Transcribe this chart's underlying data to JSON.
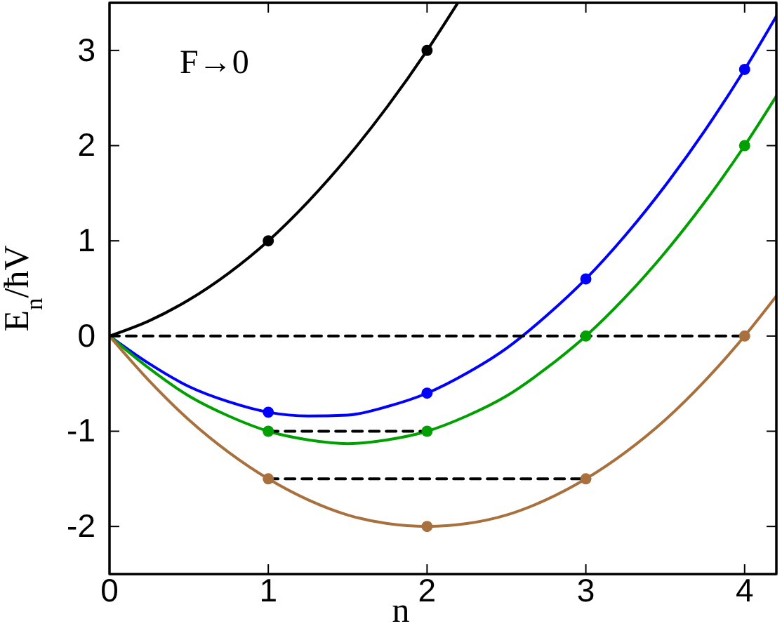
{
  "chart_data": {
    "type": "line",
    "xlabel": "n",
    "ylabel": "E$_{n}$/ħV",
    "annotations": [
      "F→0"
    ],
    "xlim": [
      0,
      4.2
    ],
    "ylim": [
      -2.5,
      3.5
    ],
    "xticks": [
      0,
      1,
      2,
      3,
      4
    ],
    "yticks": [
      -2,
      -1,
      0,
      1,
      2,
      3
    ],
    "grid": false,
    "series": [
      {
        "type": "line",
        "color": "#000000",
        "line_style": "solid",
        "x": [
          0,
          0.25,
          0.5,
          0.75,
          1,
          1.25,
          1.5,
          1.75,
          2,
          2.19
        ],
        "values": [
          0,
          0.16,
          0.38,
          0.66,
          1,
          1.41,
          1.88,
          2.41,
          3,
          3.49
        ]
      },
      {
        "type": "line",
        "color": "#0000ff",
        "line_style": "solid",
        "x": [
          0,
          0.25,
          0.5,
          0.75,
          1,
          1.25,
          1.5,
          1.75,
          2,
          2.25,
          2.5,
          2.75,
          3,
          3.25,
          3.5,
          3.75,
          4,
          4.2
        ],
        "values": [
          0,
          -0.29,
          -0.53,
          -0.69,
          -0.8,
          -0.84,
          -0.83,
          -0.74,
          -0.6,
          -0.39,
          -0.13,
          0.21,
          0.6,
          1.06,
          1.58,
          2.16,
          2.8,
          3.36
        ]
      },
      {
        "type": "line",
        "color": "#00a000",
        "line_style": "solid",
        "x": [
          0,
          0.25,
          0.5,
          0.75,
          1,
          1.25,
          1.5,
          1.75,
          2,
          2.25,
          2.5,
          2.75,
          3,
          3.25,
          3.5,
          3.75,
          4,
          4.2
        ],
        "values": [
          0,
          -0.34,
          -0.63,
          -0.84,
          -1,
          -1.09,
          -1.13,
          -1.09,
          -1,
          -0.84,
          -0.63,
          -0.34,
          0,
          0.41,
          0.88,
          1.41,
          2,
          2.52
        ]
      },
      {
        "type": "line",
        "color": "#a8703c",
        "line_style": "solid",
        "x": [
          0,
          0.25,
          0.5,
          0.75,
          1,
          1.25,
          1.5,
          1.75,
          2,
          2.25,
          2.5,
          2.75,
          3,
          3.25,
          3.5,
          3.75,
          4,
          4.2
        ],
        "values": [
          0,
          -0.47,
          -0.88,
          -1.22,
          -1.5,
          -1.72,
          -1.88,
          -1.97,
          -2,
          -1.97,
          -1.88,
          -1.72,
          -1.5,
          -1.22,
          -0.88,
          -0.47,
          0,
          0.42
        ]
      },
      {
        "type": "line",
        "color": "#000000",
        "line_style": "dashed",
        "x": [
          0,
          4
        ],
        "values": [
          0,
          0
        ]
      },
      {
        "type": "line",
        "color": "#000000",
        "line_style": "dashed",
        "x": [
          1,
          2
        ],
        "values": [
          -1,
          -1
        ]
      },
      {
        "type": "line",
        "color": "#000000",
        "line_style": "dashed",
        "x": [
          1,
          3
        ],
        "values": [
          -1.5,
          -1.5
        ]
      },
      {
        "type": "scatter",
        "marker": "circle",
        "color": "#000000",
        "x": [
          1,
          2
        ],
        "values": [
          1,
          3
        ]
      },
      {
        "type": "scatter",
        "marker": "circle",
        "color": "#0000ff",
        "x": [
          1,
          2,
          3,
          4
        ],
        "values": [
          -0.8,
          -0.6,
          0.6,
          2.8
        ]
      },
      {
        "type": "scatter",
        "marker": "circle",
        "color": "#00a000",
        "x": [
          1,
          2,
          3,
          4
        ],
        "values": [
          -1,
          -1,
          0,
          2
        ]
      },
      {
        "type": "scatter",
        "marker": "circle",
        "color": "#a8703c",
        "x": [
          1,
          2,
          3,
          4
        ],
        "values": [
          -1.5,
          -2,
          -1.5,
          0
        ]
      }
    ]
  }
}
